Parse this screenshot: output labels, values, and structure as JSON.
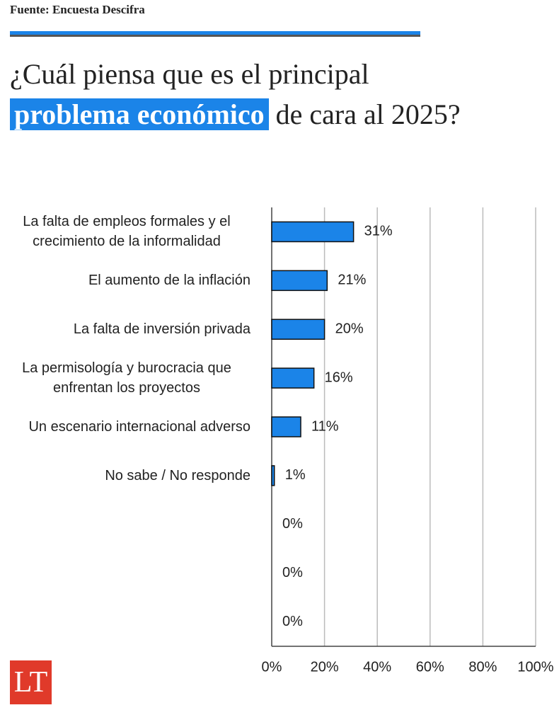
{
  "source": "Fuente: Encuesta Descifra",
  "title": {
    "line1": "¿Cuál piensa que es el principal",
    "highlight": "problema económico",
    "rest": "de cara al 2025?"
  },
  "logo": "LT",
  "chart_data": {
    "type": "bar",
    "orientation": "horizontal",
    "categories": [
      "La falta de empleos formales y el crecimiento de la informalidad",
      "El aumento de la inflación",
      "La falta de inversión privada",
      "La permisología y burocracia que enfrentan los proyectos",
      "Un escenario internacional adverso",
      "No sabe / No responde",
      null,
      null,
      null
    ],
    "values": [
      31,
      21,
      20,
      16,
      11,
      1,
      0,
      0,
      0
    ],
    "value_labels": [
      "31%",
      "21%",
      "20%",
      "16%",
      "11%",
      "1%",
      "0%",
      "0%",
      "0%"
    ],
    "color": "#1b84e8",
    "xlim": [
      0,
      100
    ],
    "xticks": [
      {
        "value": 0,
        "label": "0%"
      },
      {
        "value": 20,
        "label": "20%"
      },
      {
        "value": 40,
        "label": "40%"
      },
      {
        "value": 60,
        "label": "60%"
      },
      {
        "value": 80,
        "label": "80%"
      },
      {
        "value": 100,
        "label": "100%"
      }
    ],
    "grid": true
  }
}
